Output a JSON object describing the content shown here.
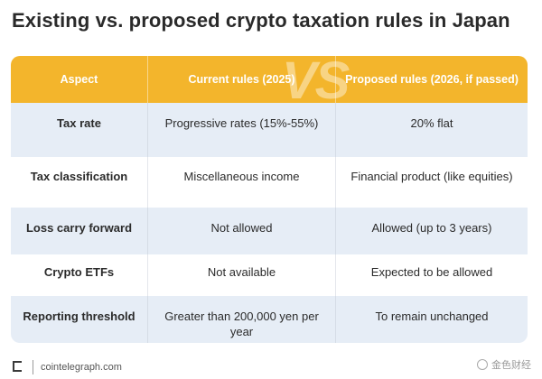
{
  "title": "Existing vs. proposed crypto taxation rules in Japan",
  "table": {
    "header": {
      "aspect": "Aspect",
      "current": "Current rules (2025)",
      "proposed": "Proposed rules (2026, if passed)",
      "vs": "VS"
    },
    "rows": [
      {
        "aspect": "Tax rate",
        "current": "Progressive rates (15%-55%)",
        "proposed": "20% flat"
      },
      {
        "aspect": "Tax classification",
        "current": "Miscellaneous income",
        "proposed": "Financial product (like equities)"
      },
      {
        "aspect": "Loss carry forward",
        "current": "Not allowed",
        "proposed": "Allowed (up to 3 years)"
      },
      {
        "aspect": "Crypto ETFs",
        "current": "Not available",
        "proposed": "Expected to be allowed"
      },
      {
        "aspect": "Reporting threshold",
        "current": "Greater than 200,000 yen per year",
        "proposed": "To remain unchanged"
      }
    ]
  },
  "footer": {
    "source": "cointelegraph.com",
    "logo_icon": "cointelegraph-logo-icon"
  },
  "watermark": {
    "text": "金色财经",
    "icon": "watermark-icon"
  },
  "colors": {
    "header": "#f3b52c",
    "shaded_row": "#e6edf6",
    "header_text": "#ffffff"
  }
}
